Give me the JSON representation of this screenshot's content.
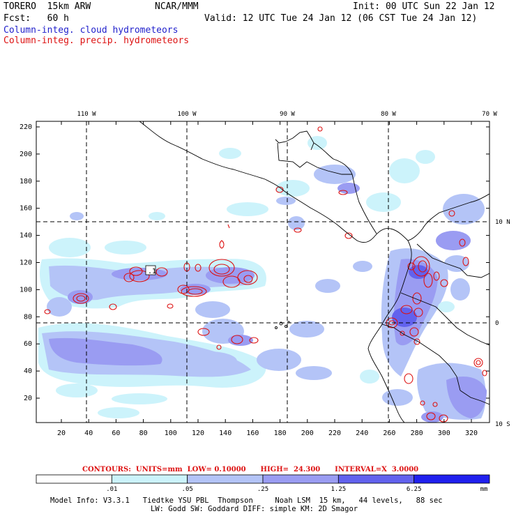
{
  "header": {
    "model": "TORERO  15km ARW",
    "org": "NCAR/MMM",
    "init": "Init: 00 UTC Sun 22 Jan 12",
    "fcst": "Fcst:   60 h",
    "valid": "Valid: 12 UTC Tue 24 Jan 12 (06 CST Tue 24 Jan 12)",
    "field_cloud": "Column-integ. cloud hydrometeors",
    "field_precip": "Column-integ. precip. hydrometeors"
  },
  "map": {
    "lon_labels": [
      "110 W",
      "100 W",
      "90 W",
      "80 W",
      "70 W"
    ],
    "lat_labels": [
      "10 N",
      "0",
      "10 S"
    ],
    "y_ticks": [
      "220",
      "200",
      "180",
      "160",
      "140",
      "120",
      "100",
      "80",
      "60",
      "40",
      "20"
    ],
    "x_ticks": [
      "20",
      "40",
      "60",
      "80",
      "100",
      "120",
      "140",
      "160",
      "180",
      "200",
      "220",
      "240",
      "260",
      "280",
      "300",
      "320"
    ],
    "contour_label": ".1"
  },
  "contours": {
    "text": "CONTOURS:  UNITS=mm  LOW= 0.10000      HIGH=  24.300      INTERVAL=X  3.0000"
  },
  "colorbar": {
    "colors": [
      "#ffffff",
      "#ccf3fb",
      "#b4c4f7",
      "#9a9cf2",
      "#6262ee",
      "#2020ee"
    ],
    "labels": [
      ".01",
      ".05",
      ".25",
      "1.25",
      "6.25"
    ],
    "unit": "mm"
  },
  "footer": {
    "line1": "Model Info: V3.3.1   Tiedtke YSU PBL  Thompson     Noah LSM  15 km,   44 levels,   88 sec",
    "line2": "LW: Godd SW: Goddard DIFF: simple KM: 2D Smagor"
  },
  "colors": {
    "cloud_light": "#ccf3fb",
    "cloud_mid": "#b4c4f7",
    "cloud_dark": "#9a9cf2",
    "cloud_strong": "#6262ee",
    "precip": "#dd1111"
  }
}
